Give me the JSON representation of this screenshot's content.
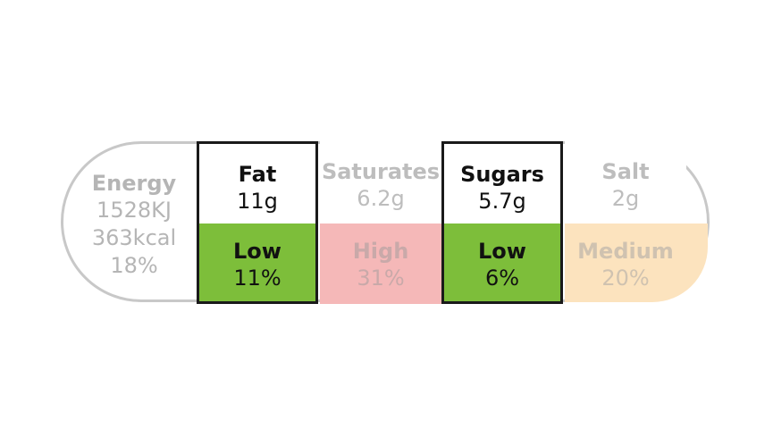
{
  "energy": {
    "label": "Energy",
    "kj": "1528KJ",
    "kcal": "363kcal",
    "percent": "18%"
  },
  "nutrients": [
    {
      "name": "Fat",
      "amount": "11g",
      "level": "Low",
      "percent": "11%",
      "color": "#7dbe3a",
      "highlighted": true
    },
    {
      "name": "Saturates",
      "amount": "6.2g",
      "level": "High",
      "percent": "31%",
      "color": "#f5b8b8",
      "highlighted": false
    },
    {
      "name": "Sugars",
      "amount": "5.7g",
      "level": "Low",
      "percent": "6%",
      "color": "#7dbe3a",
      "highlighted": true
    },
    {
      "name": "Salt",
      "amount": "2g",
      "level": "Medium",
      "percent": "20%",
      "color": "#fce3be",
      "highlighted": false
    }
  ]
}
